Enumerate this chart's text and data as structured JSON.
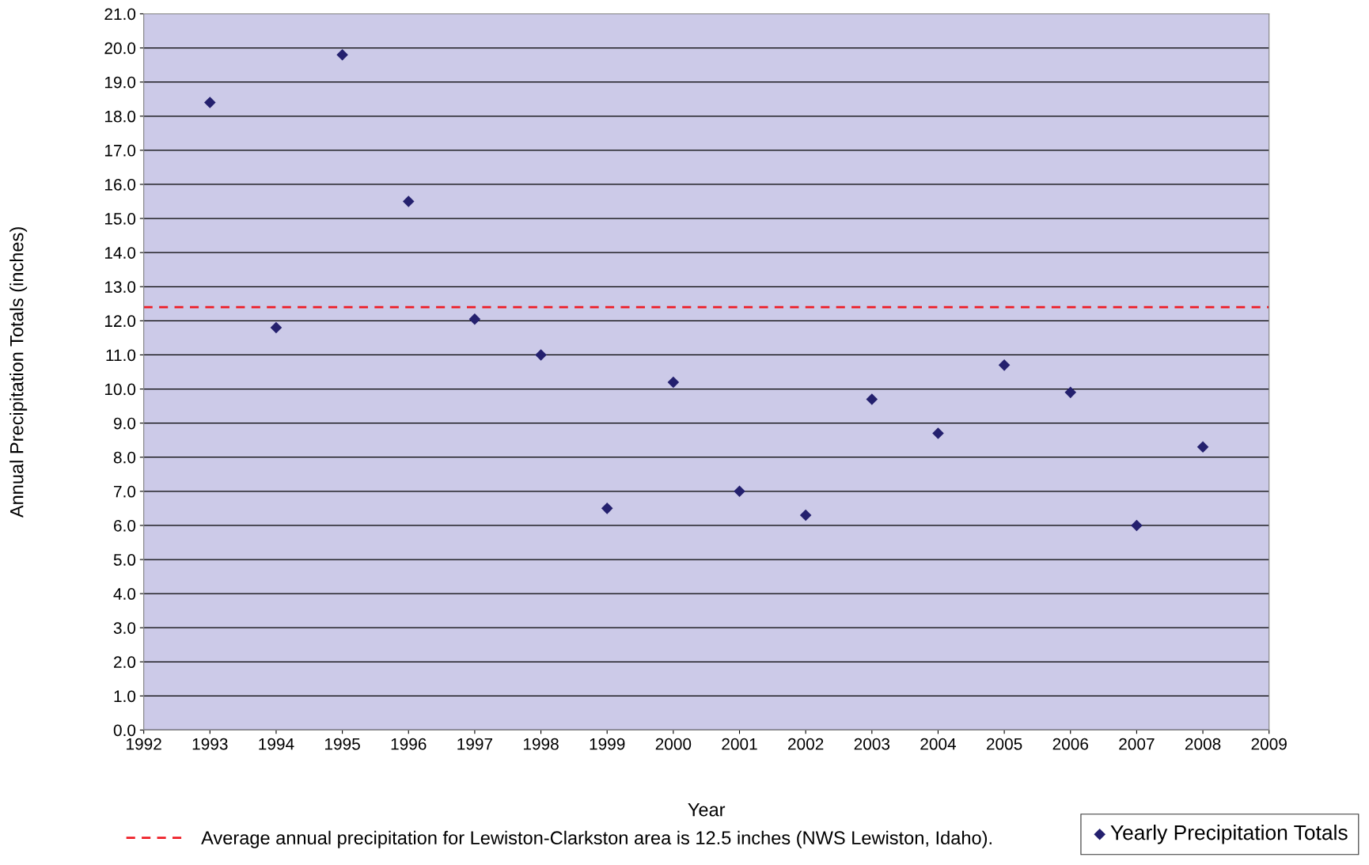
{
  "chart_data": {
    "type": "scatter",
    "xlabel": "Year",
    "ylabel": "Annual Precipitation Totals (inches)",
    "x": [
      1993,
      1994,
      1995,
      1996,
      1997,
      1998,
      1999,
      2000,
      2001,
      2002,
      2003,
      2004,
      2005,
      2006,
      2007,
      2008
    ],
    "series": [
      {
        "name": "Yearly Precipitation Totals",
        "color": "#24206e",
        "values": [
          18.4,
          11.8,
          19.8,
          15.5,
          12.05,
          11.0,
          6.5,
          10.2,
          7.0,
          6.3,
          9.7,
          8.7,
          10.7,
          9.9,
          6.0,
          8.3
        ]
      }
    ],
    "marker": "diamond",
    "xlim": [
      1992,
      2009
    ],
    "xticks": [
      1992,
      1993,
      1994,
      1995,
      1996,
      1997,
      1998,
      1999,
      2000,
      2001,
      2002,
      2003,
      2004,
      2005,
      2006,
      2007,
      2008,
      2009
    ],
    "ylim": [
      0,
      21
    ],
    "yticks": [
      {
        "value": 0,
        "label": "0.0"
      },
      {
        "value": 1,
        "label": "1.0"
      },
      {
        "value": 2,
        "label": "2.0"
      },
      {
        "value": 3,
        "label": "3.0"
      },
      {
        "value": 4,
        "label": "4.0"
      },
      {
        "value": 5,
        "label": "5.0"
      },
      {
        "value": 6,
        "label": "6.0"
      },
      {
        "value": 7,
        "label": "7.0"
      },
      {
        "value": 8,
        "label": "8.0"
      },
      {
        "value": 9,
        "label": "9.0"
      },
      {
        "value": 10,
        "label": "10.0"
      },
      {
        "value": 11,
        "label": "11.0"
      },
      {
        "value": 12,
        "label": "12.0"
      },
      {
        "value": 13,
        "label": "13.0"
      },
      {
        "value": 14,
        "label": "14.0"
      },
      {
        "value": 15,
        "label": "15.0"
      },
      {
        "value": 16,
        "label": "16.0"
      },
      {
        "value": 17,
        "label": "17.0"
      },
      {
        "value": 18,
        "label": "18.0"
      },
      {
        "value": 19,
        "label": "19.0"
      },
      {
        "value": 20,
        "label": "20.0"
      },
      {
        "value": 21,
        "label": "21.0"
      }
    ],
    "grid": "y",
    "legend": "bottom right",
    "ref_lines": [
      {
        "axis": "y",
        "value": 12.4,
        "label": "Average annual precipitation for Lewiston-Clarkston area is 12.5 inches (NWS Lewiston, Idaho).",
        "color": "#ee1c25",
        "line_style": "dashed"
      }
    ]
  }
}
